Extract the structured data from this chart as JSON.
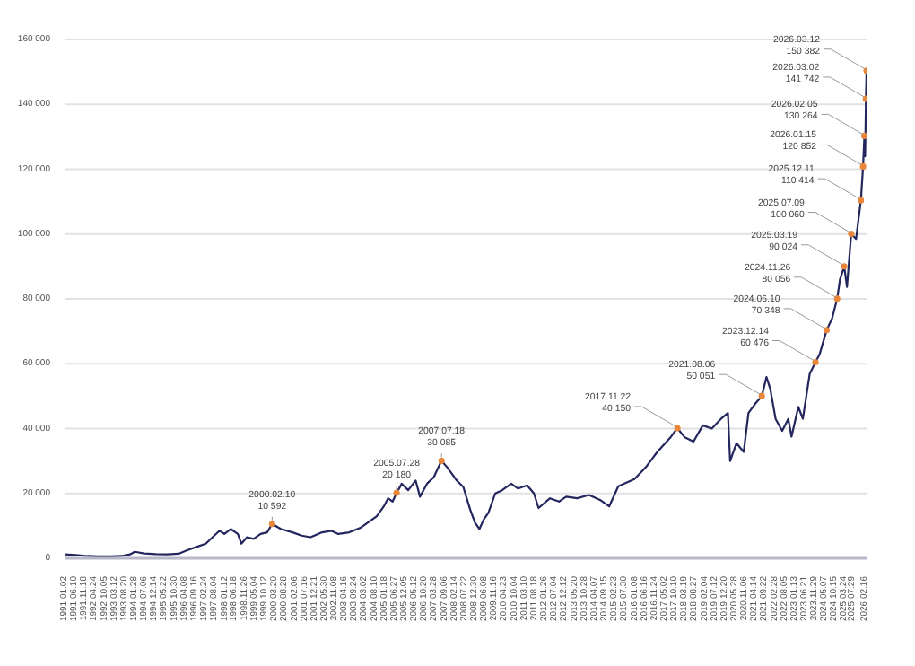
{
  "chart_data": {
    "type": "line",
    "xlim": [
      "1991-01-02",
      "2026-03-12"
    ],
    "ylim": [
      0,
      160000
    ],
    "yticks": [
      0,
      {
        "value": 20000,
        "label": "20 000"
      },
      {
        "value": 40000,
        "label": "40 000"
      },
      {
        "value": 60000,
        "label": "60 000"
      },
      {
        "value": 80000,
        "label": "80 000"
      },
      {
        "value": 100000,
        "label": "100 000"
      },
      {
        "value": 120000,
        "label": "120 000"
      },
      {
        "value": 140000,
        "label": "140 000"
      },
      {
        "value": 160000,
        "label": "160 000"
      }
    ],
    "xticks": [
      {
        "value": "1991-01-02",
        "label": "1991.01.02"
      },
      {
        "value": "1991-06-10",
        "label": "1991.06.10"
      },
      {
        "value": "1991-11-18",
        "label": "1991.11.18"
      },
      {
        "value": "1992-04-24",
        "label": "1992.04.24"
      },
      {
        "value": "1992-10-05",
        "label": "1992.10.05"
      },
      {
        "value": "1993-03-12",
        "label": "1993.03.12"
      },
      {
        "value": "1993-08-20",
        "label": "1993.08.20"
      },
      {
        "value": "1994-01-28",
        "label": "1994.01.28"
      },
      {
        "value": "1994-07-06",
        "label": "1994.07.06"
      },
      {
        "value": "1994-12-14",
        "label": "1994.12.14"
      },
      {
        "value": "1995-05-22",
        "label": "1995.05.22"
      },
      {
        "value": "1995-10-30",
        "label": "1995.10.30"
      },
      {
        "value": "1996-04-08",
        "label": "1996.04.08"
      },
      {
        "value": "1996-09-16",
        "label": "1996.09.16"
      },
      {
        "value": "1997-02-24",
        "label": "1997.02.24"
      },
      {
        "value": "1997-08-04",
        "label": "1997.08.04"
      },
      {
        "value": "1998-01-12",
        "label": "1998.01.12"
      },
      {
        "value": "1998-06-18",
        "label": "1998.06.18"
      },
      {
        "value": "1998-11-26",
        "label": "1998.11.26"
      },
      {
        "value": "1999-05-04",
        "label": "1999.05.04"
      },
      {
        "value": "1999-10-12",
        "label": "1999.10.12"
      },
      {
        "value": "2000-03-20",
        "label": "2000.03.20"
      },
      {
        "value": "2000-08-28",
        "label": "2000.08.28"
      },
      {
        "value": "2001-02-06",
        "label": "2001.02.06"
      },
      {
        "value": "2001-07-16",
        "label": "2001.07.16"
      },
      {
        "value": "2001-12-21",
        "label": "2001.12.21"
      },
      {
        "value": "2002-05-30",
        "label": "2002.05.30"
      },
      {
        "value": "2002-11-08",
        "label": "2002.11.08"
      },
      {
        "value": "2003-04-16",
        "label": "2003.04.16"
      },
      {
        "value": "2003-09-24",
        "label": "2003.09.24"
      },
      {
        "value": "2004-03-02",
        "label": "2004.03.02"
      },
      {
        "value": "2004-08-10",
        "label": "2004.08.10"
      },
      {
        "value": "2005-01-18",
        "label": "2005.01.18"
      },
      {
        "value": "2005-06-27",
        "label": "2005.06.27"
      },
      {
        "value": "2005-12-05",
        "label": "2005.12.05"
      },
      {
        "value": "2006-05-12",
        "label": "2006.05.12"
      },
      {
        "value": "2006-10-20",
        "label": "2006.10.20"
      },
      {
        "value": "2007-03-28",
        "label": "2007.03.28"
      },
      {
        "value": "2007-09-06",
        "label": "2007.09.06"
      },
      {
        "value": "2008-02-14",
        "label": "2008.02.14"
      },
      {
        "value": "2008-07-22",
        "label": "2008.07.22"
      },
      {
        "value": "2008-12-30",
        "label": "2008.12.30"
      },
      {
        "value": "2009-06-08",
        "label": "2009.06.08"
      },
      {
        "value": "2009-11-16",
        "label": "2009.11.16"
      },
      {
        "value": "2010-04-23",
        "label": "2010.04.23"
      },
      {
        "value": "2010-10-04",
        "label": "2010.10.04"
      },
      {
        "value": "2011-03-10",
        "label": "2011.03.10"
      },
      {
        "value": "2011-08-18",
        "label": "2011.08.18"
      },
      {
        "value": "2012-01-26",
        "label": "2012.01.26"
      },
      {
        "value": "2012-07-04",
        "label": "2012.07.04"
      },
      {
        "value": "2012-12-12",
        "label": "2012.12.12"
      },
      {
        "value": "2013-05-20",
        "label": "2013.05.20"
      },
      {
        "value": "2013-10-28",
        "label": "2013.10.28"
      },
      {
        "value": "2014-04-07",
        "label": "2014.04.07"
      },
      {
        "value": "2014-09-15",
        "label": "2014.09.15"
      },
      {
        "value": "2015-02-23",
        "label": "2015.02.23"
      },
      {
        "value": "2015-07-30",
        "label": "2015.07.30"
      },
      {
        "value": "2016-01-08",
        "label": "2016.01.08"
      },
      {
        "value": "2016-06-16",
        "label": "2016.06.16"
      },
      {
        "value": "2016-11-24",
        "label": "2016.11.24"
      },
      {
        "value": "2017-05-02",
        "label": "2017.05.02"
      },
      {
        "value": "2017-10-10",
        "label": "2017.10.10"
      },
      {
        "value": "2018-03-19",
        "label": "2018.03.19"
      },
      {
        "value": "2018-08-27",
        "label": "2018.08.27"
      },
      {
        "value": "2019-02-04",
        "label": "2019.02.04"
      },
      {
        "value": "2019-07-12",
        "label": "2019.07.12"
      },
      {
        "value": "2019-12-20",
        "label": "2019.12.20"
      },
      {
        "value": "2020-05-28",
        "label": "2020.05.28"
      },
      {
        "value": "2020-11-06",
        "label": "2020.11.06"
      },
      {
        "value": "2021-04-14",
        "label": "2021.04.14"
      },
      {
        "value": "2021-09-22",
        "label": "2021.09.22"
      },
      {
        "value": "2022-02-28",
        "label": "2022.02.28"
      },
      {
        "value": "2022-08-05",
        "label": "2022.08.05"
      },
      {
        "value": "2023-01-13",
        "label": "2023.01.13"
      },
      {
        "value": "2023-06-21",
        "label": "2023.06.21"
      },
      {
        "value": "2023-11-29",
        "label": "2023.11.29"
      },
      {
        "value": "2024-05-07",
        "label": "2024.05.07"
      },
      {
        "value": "2024-10-15",
        "label": "2024.10.15"
      },
      {
        "value": "2025-03-24",
        "label": "2025.03.24"
      },
      {
        "value": "2025-07-29",
        "label": "2025.07.29"
      },
      {
        "value": "2026-02-16",
        "label": "2026.02.16"
      }
    ],
    "grid": "y",
    "series": [
      {
        "color": "#24265e",
        "marker": "none",
        "x": [
          "1991-01-02",
          "1991-07-01",
          "1992-01-02",
          "1992-07-01",
          "1993-01-04",
          "1993-07-01",
          "1993-11-15",
          "1994-02-01",
          "1994-07-01",
          "1995-01-03",
          "1995-07-03",
          "1996-01-03",
          "1996-05-20",
          "1996-10-15",
          "1997-03-14",
          "1997-07-01",
          "1997-10-20",
          "1998-01-05",
          "1998-04-20",
          "1998-08-10",
          "1998-10-05",
          "1999-01-04",
          "1999-04-20",
          "1999-08-09",
          "1999-11-22",
          "2000-02-10",
          "2000-07-03",
          "2001-01-03",
          "2001-05-28",
          "2001-10-19",
          "2002-04-22",
          "2002-09-13",
          "2003-01-06",
          "2003-07-01",
          "2004-01-05",
          "2004-04-20",
          "2004-09-13",
          "2005-01-04",
          "2005-03-14",
          "2005-05-25",
          "2005-07-28",
          "2005-10-19",
          "2006-01-30",
          "2006-05-29",
          "2006-08-07",
          "2006-11-27",
          "2007-03-15",
          "2007-07-18",
          "2007-10-19",
          "2008-01-04",
          "2008-03-17",
          "2008-07-01",
          "2008-10-20",
          "2009-01-05",
          "2009-03-16",
          "2009-05-26",
          "2009-08-07",
          "2009-11-25",
          "2010-03-15",
          "2010-08-09",
          "2010-11-26",
          "2011-04-20",
          "2011-08-08",
          "2011-10-20",
          "2012-04-20",
          "2012-09-13",
          "2013-01-04",
          "2013-07-01",
          "2014-01-06",
          "2014-07-01",
          "2014-11-25",
          "2015-04-20",
          "2016-01-04",
          "2016-07-01",
          "2017-01-04",
          "2017-08-08",
          "2017-11-22",
          "2018-03-15",
          "2018-08-07",
          "2019-01-04",
          "2019-05-27",
          "2019-10-21",
          "2020-02-10",
          "2020-03-16",
          "2020-06-26",
          "2020-10-20",
          "2021-01-04",
          "2021-04-20",
          "2021-08-06",
          "2021-10-20",
          "2021-12-20",
          "2022-03-15",
          "2022-06-29",
          "2022-10-04",
          "2022-11-25",
          "2023-03-15",
          "2023-05-26",
          "2023-09-13",
          "2023-12-14",
          "2024-02-20",
          "2024-06-10",
          "2024-09-06",
          "2024-11-26",
          "2025-01-10",
          "2025-03-19",
          "2025-05-02",
          "2025-07-09",
          "2025-09-25",
          "2025-12-11",
          "2026-01-15",
          "2026-02-05",
          "2026-02-17",
          "2026-03-02",
          "2026-03-12"
        ],
        "values": [
          1200,
          1000,
          700,
          600,
          600,
          700,
          1200,
          2000,
          1500,
          1300,
          1200,
          1400,
          2500,
          3500,
          4500,
          6500,
          8500,
          7500,
          9000,
          7500,
          4500,
          6500,
          6000,
          7500,
          8000,
          10592,
          9000,
          8000,
          7000,
          6500,
          8000,
          8500,
          7500,
          8000,
          9500,
          11000,
          13000,
          16000,
          18500,
          17500,
          20180,
          23000,
          21000,
          24000,
          19000,
          23000,
          25000,
          30085,
          28000,
          26000,
          24000,
          22000,
          15000,
          11000,
          9000,
          12000,
          14000,
          20000,
          21000,
          23000,
          21500,
          22500,
          20000,
          15500,
          18500,
          17500,
          19000,
          18500,
          19500,
          18000,
          16000,
          22200,
          24400,
          28000,
          32800,
          37400,
          40150,
          37400,
          36000,
          41000,
          40000,
          43000,
          44800,
          30000,
          35500,
          32800,
          44800,
          47600,
          50051,
          55900,
          52200,
          43000,
          39300,
          43000,
          37500,
          46700,
          43000,
          56900,
          60476,
          63000,
          70348,
          74000,
          80056,
          86000,
          90024,
          83700,
          100060,
          98500,
          110414,
          120852,
          130264,
          124000,
          141742,
          150382
        ]
      },
      {
        "type": "scatter",
        "color": "#e8863a",
        "marker": "circle",
        "x": [
          "2000-02-10",
          "2005-07-28",
          "2007-07-18",
          "2017-11-22",
          "2021-08-06",
          "2023-12-14",
          "2024-06-10",
          "2024-11-26",
          "2025-03-19",
          "2025-07-09",
          "2025-12-11",
          "2026-01-15",
          "2026-02-05",
          "2026-03-02",
          "2026-03-12"
        ],
        "values": [
          10592,
          20180,
          30085,
          40150,
          50051,
          60476,
          70348,
          80056,
          90024,
          100060,
          110414,
          120852,
          130264,
          141742,
          150382
        ]
      }
    ],
    "annotations": [
      {
        "text": "2000.02.10\n10 592",
        "x": "2000-02-10",
        "y": 10592
      },
      {
        "text": "2005.07.28\n20 180",
        "x": "2005-07-28",
        "y": 20180
      },
      {
        "text": "2007.07.18\n30 085",
        "x": "2007-07-18",
        "y": 30085
      },
      {
        "text": "2017.11.22\n40 150",
        "x": "2017-11-22",
        "y": 40150
      },
      {
        "text": "2021.08.06\n50 051",
        "x": "2021-08-06",
        "y": 50051
      },
      {
        "text": "2023.12.14\n60 476",
        "x": "2023-12-14",
        "y": 60476
      },
      {
        "text": "2024.06.10\n70 348",
        "x": "2024-06-10",
        "y": 70348
      },
      {
        "text": "2024.11.26\n80 056",
        "x": "2024-11-26",
        "y": 80056
      },
      {
        "text": "2025.03.19\n90 024",
        "x": "2025-03-19",
        "y": 90024
      },
      {
        "text": "2025.07.09\n100 060",
        "x": "2025-07-09",
        "y": 100060
      },
      {
        "text": "2025.12.11\n110 414",
        "x": "2025-12-11",
        "y": 110414
      },
      {
        "text": "2026.01.15\n120 852",
        "x": "2026-01-15",
        "y": 120852
      },
      {
        "text": "2026.02.05\n130 264",
        "x": "2026-02-05",
        "y": 130264
      },
      {
        "text": "2026.03.02\n141 742",
        "x": "2026-03-02",
        "y": 141742
      },
      {
        "text": "2026.03.12\n150 382",
        "x": "2026-03-12",
        "y": 150382
      }
    ]
  }
}
